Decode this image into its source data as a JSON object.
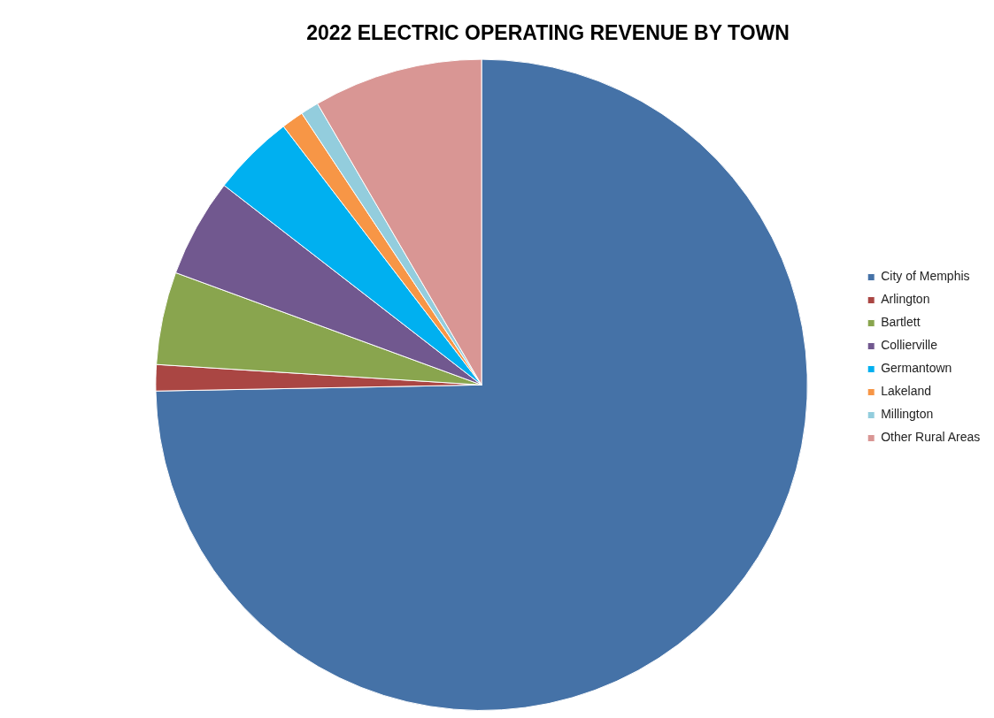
{
  "chart_data": {
    "type": "pie",
    "title": "2022 ELECTRIC OPERATING REVENUE BY TOWN",
    "categories": [
      "City of Memphis",
      "Arlington",
      "Bartlett",
      "Collierville",
      "Germantown",
      "Lakeland",
      "Millington",
      "Other Rural Areas"
    ],
    "values": [
      74.7,
      1.3,
      4.6,
      4.9,
      4.1,
      1.1,
      0.9,
      8.4
    ],
    "colors": [
      "#4572a7",
      "#aa4643",
      "#89a54e",
      "#71588f",
      "#00b0f0",
      "#f79646",
      "#93cddd",
      "#d99694"
    ],
    "legend": "right"
  }
}
